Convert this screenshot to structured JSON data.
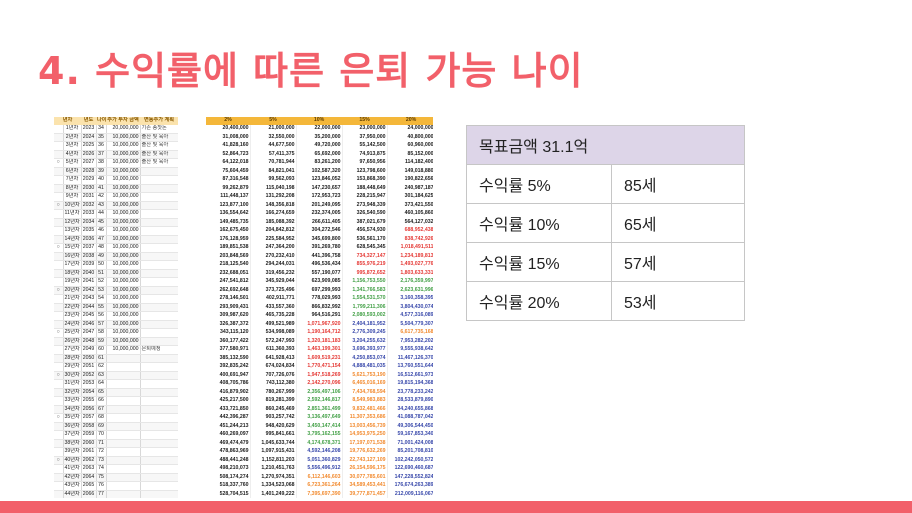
{
  "slide": {
    "title": "4. 수익률에 따른 은퇴 가능 나이"
  },
  "spreadsheet": {
    "headers_left": [
      "년차",
      "연차",
      "년도",
      "나이",
      "추가 투자 금액",
      "변동주가 계획"
    ],
    "headers_right": [
      "2%",
      "5%",
      "10%",
      "15%",
      "20%"
    ],
    "rows": [
      {
        "mark": "",
        "year": "1년차",
        "yr": "2023",
        "age": "34",
        "contrib": "20,000,000",
        "event": "기존 종잣돈",
        "vals": [
          "20,400,000",
          "21,000,000",
          "22,000,000",
          "23,000,000",
          "24,000,000"
        ],
        "colors": [
          "#222",
          "#222",
          "#222",
          "#222",
          "#222"
        ]
      },
      {
        "mark": "",
        "year": "2년차",
        "yr": "2024",
        "age": "35",
        "contrib": "10,000,000",
        "event": "출산 및 육아",
        "vals": [
          "31,008,000",
          "32,550,000",
          "35,200,000",
          "37,950,000",
          "40,800,000"
        ],
        "colors": [
          "#222",
          "#222",
          "#222",
          "#222",
          "#222"
        ]
      },
      {
        "mark": "",
        "year": "3년차",
        "yr": "2025",
        "age": "36",
        "contrib": "10,000,000",
        "event": "출산 및 육아",
        "vals": [
          "41,828,160",
          "44,677,500",
          "49,720,000",
          "55,142,500",
          "60,960,000"
        ],
        "colors": [
          "#222",
          "#222",
          "#222",
          "#222",
          "#222"
        ]
      },
      {
        "mark": "",
        "year": "4년차",
        "yr": "2026",
        "age": "37",
        "contrib": "10,000,000",
        "event": "출산 및 육아",
        "vals": [
          "52,864,723",
          "57,411,375",
          "65,692,000",
          "74,913,875",
          "85,152,000"
        ],
        "colors": [
          "#222",
          "#222",
          "#222",
          "#222",
          "#222"
        ]
      },
      {
        "mark": "○",
        "year": "5년차",
        "yr": "2027",
        "age": "38",
        "contrib": "10,000,000",
        "event": "출산 및 육아",
        "vals": [
          "64,122,018",
          "70,781,944",
          "83,261,200",
          "97,650,956",
          "114,182,400"
        ],
        "colors": [
          "#222",
          "#222",
          "#222",
          "#222",
          "#222"
        ]
      },
      {
        "mark": "",
        "year": "6년차",
        "yr": "2028",
        "age": "39",
        "contrib": "10,000,000",
        "event": "",
        "vals": [
          "75,604,459",
          "84,821,041",
          "102,587,320",
          "123,798,600",
          "149,018,880"
        ],
        "colors": [
          "#222",
          "#222",
          "#222",
          "#222",
          "#222"
        ]
      },
      {
        "mark": "",
        "year": "7년차",
        "yr": "2029",
        "age": "40",
        "contrib": "10,000,000",
        "event": "",
        "vals": [
          "87,316,548",
          "99,562,093",
          "123,846,052",
          "153,868,390",
          "190,822,656"
        ],
        "colors": [
          "#222",
          "#222",
          "#222",
          "#222",
          "#222"
        ]
      },
      {
        "mark": "",
        "year": "8년차",
        "yr": "2030",
        "age": "41",
        "contrib": "10,000,000",
        "event": "",
        "vals": [
          "99,262,879",
          "115,040,198",
          "147,230,657",
          "188,448,649",
          "240,987,187"
        ],
        "colors": [
          "#222",
          "#222",
          "#222",
          "#222",
          "#222"
        ]
      },
      {
        "mark": "",
        "year": "9년차",
        "yr": "2031",
        "age": "42",
        "contrib": "10,000,000",
        "event": "",
        "vals": [
          "111,448,137",
          "131,292,208",
          "172,953,723",
          "228,215,947",
          "301,184,625"
        ],
        "colors": [
          "#222",
          "#222",
          "#222",
          "#222",
          "#222"
        ]
      },
      {
        "mark": "○",
        "year": "10년차",
        "yr": "2032",
        "age": "43",
        "contrib": "10,000,000",
        "event": "",
        "vals": [
          "123,877,100",
          "148,356,818",
          "201,249,095",
          "273,948,339",
          "373,421,550"
        ],
        "colors": [
          "#222",
          "#222",
          "#222",
          "#222",
          "#222"
        ]
      },
      {
        "mark": "",
        "year": "11년차",
        "yr": "2033",
        "age": "44",
        "contrib": "10,000,000",
        "event": "",
        "vals": [
          "136,554,642",
          "166,274,659",
          "232,374,005",
          "326,540,590",
          "460,105,860"
        ],
        "colors": [
          "#222",
          "#222",
          "#222",
          "#222",
          "#222"
        ]
      },
      {
        "mark": "",
        "year": "12년차",
        "yr": "2034",
        "age": "45",
        "contrib": "10,000,000",
        "event": "",
        "vals": [
          "149,485,735",
          "185,088,392",
          "266,611,405",
          "387,021,679",
          "564,127,032"
        ],
        "colors": [
          "#222",
          "#222",
          "#222",
          "#222",
          "#222"
        ]
      },
      {
        "mark": "",
        "year": "13년차",
        "yr": "2035",
        "age": "46",
        "contrib": "10,000,000",
        "event": "",
        "vals": [
          "162,675,450",
          "204,842,812",
          "304,272,546",
          "456,574,930",
          "688,952,438"
        ],
        "colors": [
          "#222",
          "#222",
          "#222",
          "#222",
          "#e53935"
        ]
      },
      {
        "mark": "",
        "year": "14년차",
        "yr": "2036",
        "age": "47",
        "contrib": "10,000,000",
        "event": "",
        "vals": [
          "176,128,959",
          "225,584,952",
          "345,699,800",
          "536,561,170",
          "838,742,926"
        ],
        "colors": [
          "#222",
          "#222",
          "#222",
          "#222",
          "#e53935"
        ]
      },
      {
        "mark": "○",
        "year": "15년차",
        "yr": "2037",
        "age": "48",
        "contrib": "10,000,000",
        "event": "",
        "vals": [
          "189,851,538",
          "247,364,200",
          "391,269,780",
          "628,545,345",
          "1,018,491,511"
        ],
        "colors": [
          "#222",
          "#222",
          "#222",
          "#222",
          "#e53935"
        ]
      },
      {
        "mark": "",
        "year": "16년차",
        "yr": "2038",
        "age": "49",
        "contrib": "10,000,000",
        "event": "",
        "vals": [
          "203,848,569",
          "270,232,410",
          "441,396,758",
          "734,327,147",
          "1,234,189,813"
        ],
        "colors": [
          "#222",
          "#222",
          "#222",
          "#e53935",
          "#e53935"
        ]
      },
      {
        "mark": "",
        "year": "17년차",
        "yr": "2039",
        "age": "50",
        "contrib": "10,000,000",
        "event": "",
        "vals": [
          "218,125,540",
          "294,244,031",
          "496,536,434",
          "855,976,219",
          "1,493,027,776"
        ],
        "colors": [
          "#222",
          "#222",
          "#222",
          "#e53935",
          "#e53935"
        ]
      },
      {
        "mark": "",
        "year": "18년차",
        "yr": "2040",
        "age": "51",
        "contrib": "10,000,000",
        "event": "",
        "vals": [
          "232,688,051",
          "319,456,232",
          "557,190,077",
          "995,872,652",
          "1,803,633,331"
        ],
        "colors": [
          "#222",
          "#222",
          "#222",
          "#e53935",
          "#e53935"
        ]
      },
      {
        "mark": "",
        "year": "19년차",
        "yr": "2041",
        "age": "52",
        "contrib": "10,000,000",
        "event": "",
        "vals": [
          "247,541,812",
          "345,929,044",
          "623,909,085",
          "1,156,753,550",
          "2,176,359,997"
        ],
        "colors": [
          "#222",
          "#222",
          "#222",
          "#43a047",
          "#43a047"
        ]
      },
      {
        "mark": "○",
        "year": "20년차",
        "yr": "2042",
        "age": "53",
        "contrib": "10,000,000",
        "event": "",
        "vals": [
          "262,692,648",
          "373,725,496",
          "697,299,993",
          "1,341,766,583",
          "2,623,631,996"
        ],
        "colors": [
          "#222",
          "#222",
          "#222",
          "#43a047",
          "#43a047"
        ]
      },
      {
        "mark": "",
        "year": "21년차",
        "yr": "2043",
        "age": "54",
        "contrib": "10,000,000",
        "event": "",
        "vals": [
          "278,146,501",
          "402,911,771",
          "778,029,993",
          "1,554,531,570",
          "3,160,358,395"
        ],
        "colors": [
          "#222",
          "#222",
          "#222",
          "#43a047",
          "#3949ab"
        ]
      },
      {
        "mark": "",
        "year": "22년차",
        "yr": "2044",
        "age": "55",
        "contrib": "10,000,000",
        "event": "",
        "vals": [
          "293,909,431",
          "433,557,360",
          "866,832,992",
          "1,799,211,306",
          "3,804,430,074"
        ],
        "colors": [
          "#222",
          "#222",
          "#222",
          "#43a047",
          "#3949ab"
        ]
      },
      {
        "mark": "",
        "year": "23년차",
        "yr": "2045",
        "age": "56",
        "contrib": "10,000,000",
        "event": "",
        "vals": [
          "309,987,620",
          "465,735,228",
          "964,516,291",
          "2,080,593,002",
          "4,577,316,089"
        ],
        "colors": [
          "#222",
          "#222",
          "#222",
          "#43a047",
          "#3949ab"
        ]
      },
      {
        "mark": "",
        "year": "24년차",
        "yr": "2046",
        "age": "57",
        "contrib": "10,000,000",
        "event": "",
        "vals": [
          "326,387,372",
          "499,521,989",
          "1,071,967,920",
          "2,404,181,952",
          "5,504,779,307"
        ],
        "colors": [
          "#222",
          "#222",
          "#e53935",
          "#3949ab",
          "#3949ab"
        ]
      },
      {
        "mark": "○",
        "year": "25년차",
        "yr": "2047",
        "age": "58",
        "contrib": "10,000,000",
        "event": "",
        "vals": [
          "343,115,120",
          "534,998,089",
          "1,190,164,712",
          "2,776,309,245",
          "6,617,735,168"
        ],
        "colors": [
          "#222",
          "#222",
          "#e53935",
          "#3949ab",
          "#f28b30"
        ]
      },
      {
        "mark": "",
        "year": "26년차",
        "yr": "2048",
        "age": "59",
        "contrib": "10,000,000",
        "event": "",
        "vals": [
          "360,177,422",
          "572,247,993",
          "1,320,181,183",
          "3,204,255,632",
          "7,953,282,202"
        ],
        "colors": [
          "#222",
          "#222",
          "#e53935",
          "#3949ab",
          "#3949ab"
        ]
      },
      {
        "mark": "",
        "year": "27년차",
        "yr": "2049",
        "age": "60",
        "contrib": "10,000,000",
        "event": "은퇴예정",
        "vals": [
          "377,580,971",
          "611,360,393",
          "1,463,199,301",
          "3,696,393,977",
          "9,555,938,642"
        ],
        "colors": [
          "#222",
          "#222",
          "#e53935",
          "#3949ab",
          "#3949ab"
        ]
      },
      {
        "mark": "",
        "year": "28년차",
        "yr": "2050",
        "age": "61",
        "contrib": "",
        "event": "",
        "vals": [
          "385,132,590",
          "641,928,413",
          "1,609,519,231",
          "4,250,853,074",
          "11,467,126,370"
        ],
        "colors": [
          "#222",
          "#222",
          "#e53935",
          "#3949ab",
          "#3949ab"
        ]
      },
      {
        "mark": "",
        "year": "29년차",
        "yr": "2051",
        "age": "62",
        "contrib": "",
        "event": "",
        "vals": [
          "392,835,242",
          "674,024,834",
          "1,770,471,154",
          "4,888,481,035",
          "13,760,551,644"
        ],
        "colors": [
          "#222",
          "#222",
          "#e53935",
          "#3949ab",
          "#3949ab"
        ]
      },
      {
        "mark": "○",
        "year": "30년차",
        "yr": "2052",
        "age": "63",
        "contrib": "",
        "event": "",
        "vals": [
          "400,691,947",
          "707,726,076",
          "1,947,518,269",
          "5,621,753,190",
          "16,512,661,973"
        ],
        "colors": [
          "#222",
          "#222",
          "#e53935",
          "#f28b30",
          "#3949ab"
        ]
      },
      {
        "mark": "",
        "year": "31년차",
        "yr": "2053",
        "age": "64",
        "contrib": "",
        "event": "",
        "vals": [
          "408,705,786",
          "743,112,380",
          "2,142,270,096",
          "6,465,016,169",
          "19,815,194,368"
        ],
        "colors": [
          "#222",
          "#222",
          "#e53935",
          "#f28b30",
          "#3949ab"
        ]
      },
      {
        "mark": "",
        "year": "32년차",
        "yr": "2054",
        "age": "65",
        "contrib": "",
        "event": "",
        "vals": [
          "416,879,902",
          "780,267,999",
          "2,356,497,106",
          "7,434,768,594",
          "23,778,233,242"
        ],
        "colors": [
          "#222",
          "#222",
          "#43a047",
          "#f28b30",
          "#3949ab"
        ]
      },
      {
        "mark": "",
        "year": "33년차",
        "yr": "2055",
        "age": "66",
        "contrib": "",
        "event": "",
        "vals": [
          "425,217,500",
          "819,281,399",
          "2,592,146,817",
          "8,549,983,883",
          "28,533,879,890"
        ],
        "colors": [
          "#222",
          "#222",
          "#43a047",
          "#f28b30",
          "#3949ab"
        ]
      },
      {
        "mark": "",
        "year": "34년차",
        "yr": "2056",
        "age": "67",
        "contrib": "",
        "event": "",
        "vals": [
          "433,721,850",
          "860,245,469",
          "2,851,361,499",
          "9,832,481,466",
          "34,240,655,868"
        ],
        "colors": [
          "#222",
          "#222",
          "#43a047",
          "#f28b30",
          "#3949ab"
        ]
      },
      {
        "mark": "○",
        "year": "35년차",
        "yr": "2057",
        "age": "68",
        "contrib": "",
        "event": "",
        "vals": [
          "442,396,287",
          "903,257,742",
          "3,136,497,649",
          "11,307,353,686",
          "41,088,787,042"
        ],
        "colors": [
          "#222",
          "#222",
          "#43a047",
          "#f28b30",
          "#3949ab"
        ]
      },
      {
        "mark": "",
        "year": "36년차",
        "yr": "2058",
        "age": "69",
        "contrib": "",
        "event": "",
        "vals": [
          "451,244,213",
          "948,420,629",
          "3,450,147,414",
          "13,003,456,739",
          "49,306,544,450"
        ],
        "colors": [
          "#222",
          "#222",
          "#43a047",
          "#f28b30",
          "#3949ab"
        ]
      },
      {
        "mark": "",
        "year": "37년차",
        "yr": "2059",
        "age": "70",
        "contrib": "",
        "event": "",
        "vals": [
          "460,269,097",
          "995,841,661",
          "3,795,162,155",
          "14,953,975,250",
          "59,167,853,340"
        ],
        "colors": [
          "#222",
          "#222",
          "#43a047",
          "#f28b30",
          "#3949ab"
        ]
      },
      {
        "mark": "",
        "year": "38년차",
        "yr": "2060",
        "age": "71",
        "contrib": "",
        "event": "",
        "vals": [
          "469,474,479",
          "1,045,633,744",
          "4,174,678,371",
          "17,197,071,538",
          "71,001,424,008"
        ],
        "colors": [
          "#222",
          "#222",
          "#43a047",
          "#f28b30",
          "#3949ab"
        ]
      },
      {
        "mark": "",
        "year": "39년차",
        "yr": "2061",
        "age": "72",
        "contrib": "",
        "event": "",
        "vals": [
          "478,863,969",
          "1,097,915,431",
          "4,592,146,208",
          "19,776,632,269",
          "85,201,708,810"
        ],
        "colors": [
          "#222",
          "#222",
          "#3949ab",
          "#f28b30",
          "#3949ab"
        ]
      },
      {
        "mark": "○",
        "year": "40년차",
        "yr": "2062",
        "age": "73",
        "contrib": "",
        "event": "",
        "vals": [
          "488,441,248",
          "1,152,811,203",
          "5,051,360,829",
          "22,743,127,109",
          "102,242,050,572"
        ],
        "colors": [
          "#222",
          "#222",
          "#3949ab",
          "#f28b30",
          "#3949ab"
        ]
      },
      {
        "mark": "",
        "year": "41년차",
        "yr": "2063",
        "age": "74",
        "contrib": "",
        "event": "",
        "vals": [
          "498,210,073",
          "1,210,451,763",
          "5,556,496,912",
          "26,154,596,175",
          "122,690,460,687"
        ],
        "colors": [
          "#222",
          "#222",
          "#3949ab",
          "#f28b30",
          "#3949ab"
        ]
      },
      {
        "mark": "",
        "year": "42년차",
        "yr": "2064",
        "age": "75",
        "contrib": "",
        "event": "",
        "vals": [
          "508,174,274",
          "1,270,974,351",
          "6,112,146,603",
          "30,077,785,601",
          "147,228,552,824"
        ],
        "colors": [
          "#222",
          "#222",
          "#f28b30",
          "#f28b30",
          "#3949ab"
        ]
      },
      {
        "mark": "",
        "year": "43년차",
        "yr": "2065",
        "age": "76",
        "contrib": "",
        "event": "",
        "vals": [
          "518,337,760",
          "1,334,523,068",
          "6,723,361,264",
          "34,589,453,441",
          "176,674,263,389"
        ],
        "colors": [
          "#222",
          "#222",
          "#f28b30",
          "#f28b30",
          "#3949ab"
        ]
      },
      {
        "mark": "",
        "year": "44년차",
        "yr": "2066",
        "age": "77",
        "contrib": "",
        "event": "",
        "vals": [
          "528,704,515",
          "1,401,249,222",
          "7,395,697,390",
          "39,777,871,457",
          "212,009,116,067"
        ],
        "colors": [
          "#222",
          "#222",
          "#f28b30",
          "#f28b30",
          "#3949ab"
        ]
      }
    ]
  },
  "summary_table": {
    "header": "목표금액 31.1억",
    "rows": [
      {
        "label": "수익률 5%",
        "value": "85세"
      },
      {
        "label": "수익률 10%",
        "value": "65세"
      },
      {
        "label": "수익률 15%",
        "value": "57세"
      },
      {
        "label": "수익률 20%",
        "value": "53세"
      }
    ]
  },
  "colors": {
    "accent": "#f2606a",
    "sheet_header": "#f4b73a",
    "summary_header_bg": "#ddd5e8"
  }
}
